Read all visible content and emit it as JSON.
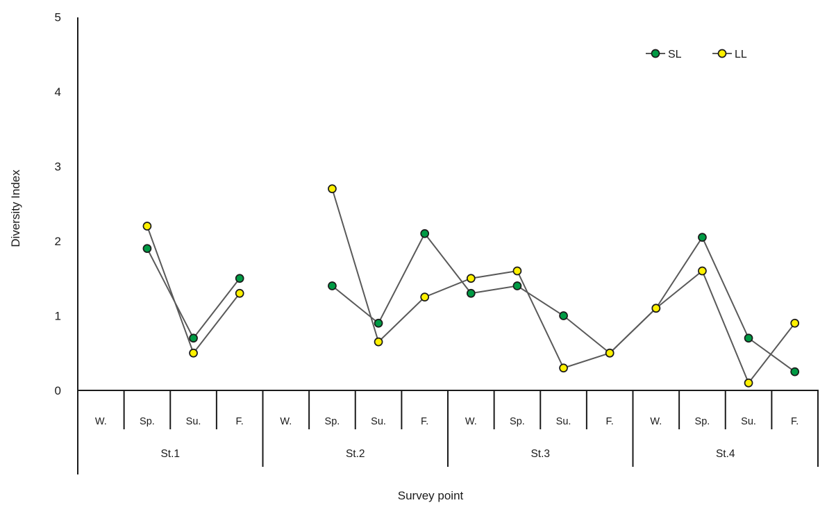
{
  "chart_data": {
    "type": "line",
    "title": "",
    "xlabel": "Survey point",
    "ylabel": "Diversity Index",
    "ylim": [
      0,
      5
    ],
    "yticks": [
      0,
      1,
      2,
      3,
      4,
      5
    ],
    "grid": false,
    "legend_position": "top-right",
    "station_labels": [
      "St.1",
      "St.2",
      "St.3",
      "St.4"
    ],
    "x_labels": [
      "W.",
      "Sp.",
      "Su.",
      "F.",
      "W.",
      "Sp.",
      "Su.",
      "F.",
      "W.",
      "Sp.",
      "Su.",
      "F.",
      "W.",
      "Sp.",
      "Su.",
      "F."
    ],
    "series": [
      {
        "name": "SL",
        "color": "#009A44",
        "values": [
          null,
          1.9,
          0.7,
          1.5,
          null,
          1.4,
          0.9,
          2.1,
          1.3,
          1.4,
          1.0,
          0.5,
          1.1,
          2.05,
          0.7,
          0.25
        ]
      },
      {
        "name": "LL",
        "color": "#FFF100",
        "values": [
          null,
          2.2,
          0.5,
          1.3,
          null,
          2.7,
          0.65,
          1.25,
          1.5,
          1.6,
          0.3,
          0.5,
          1.1,
          1.6,
          0.1,
          0.9
        ]
      }
    ],
    "line_color": "#595959",
    "marker_outline": "#1a1a1a",
    "axis_color": "#1a1a1a"
  }
}
